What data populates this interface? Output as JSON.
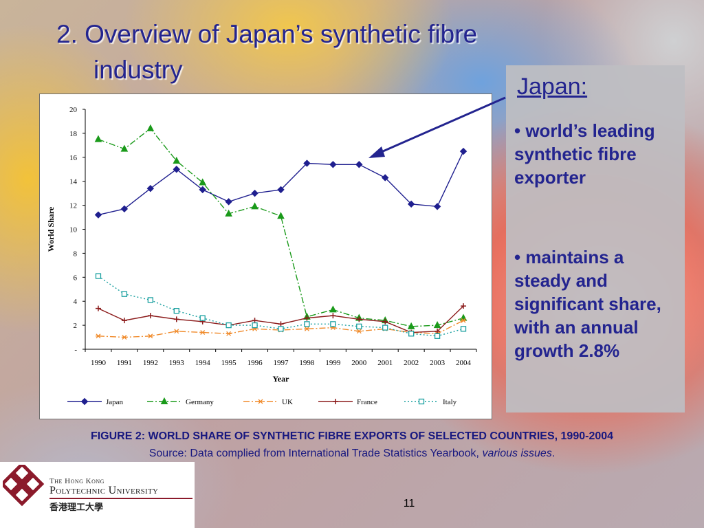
{
  "slide": {
    "title_line1": "2. Overview of Japan’s synthetic fibre",
    "title_line2": "industry",
    "caption": "FIGURE 2: WORLD SHARE OF SYNTHETIC FIBRE EXPORTS OF SELECTED COUNTRIES, 1990-2004",
    "source_prefix": "Source: Data complied from International Trade Statistics Yearbook, ",
    "source_italic": "various issues",
    "source_suffix": ".",
    "page_number": "11"
  },
  "info_box": {
    "heading": "Japan:",
    "bullet1": "• world’s leading synthetic fibre exporter",
    "bullet2": "• maintains a steady and significant share, with an annual growth 2.8%"
  },
  "logo": {
    "line1": "The Hong Kong",
    "line2": "Polytechnic University",
    "chinese": "香港理工大學",
    "color": "#8b1a2b"
  },
  "chart_data": {
    "type": "line",
    "xlabel": "Year",
    "ylabel": "World Share",
    "x": [
      "1990",
      "1991",
      "1992",
      "1993",
      "1994",
      "1995",
      "1996",
      "1997",
      "1998",
      "1999",
      "2000",
      "2001",
      "2002",
      "2003",
      "2004"
    ],
    "yticks": [
      "-",
      "2",
      "4",
      "6",
      "8",
      "10",
      "12",
      "14",
      "16",
      "18",
      "20"
    ],
    "ylim": [
      0,
      20
    ],
    "legend_position": "bottom",
    "series": [
      {
        "name": "Japan",
        "color": "#1f1f8f",
        "marker": "diamond",
        "dash": "solid",
        "values": [
          11.2,
          11.7,
          13.4,
          15.0,
          13.3,
          12.3,
          13.0,
          13.3,
          15.5,
          15.4,
          15.4,
          14.3,
          12.1,
          11.9,
          16.5
        ]
      },
      {
        "name": "Germany",
        "color": "#1a9a1a",
        "marker": "triangle",
        "dash": "dashdot",
        "values": [
          17.5,
          16.7,
          18.4,
          15.7,
          13.9,
          11.3,
          11.9,
          11.1,
          2.7,
          3.3,
          2.6,
          2.4,
          1.9,
          2.0,
          2.6
        ]
      },
      {
        "name": "UK",
        "color": "#f08a2a",
        "marker": "star",
        "dash": "dashdot",
        "values": [
          1.1,
          1.0,
          1.1,
          1.5,
          1.4,
          1.3,
          1.7,
          1.6,
          1.7,
          1.8,
          1.5,
          1.7,
          1.4,
          1.3,
          2.4
        ]
      },
      {
        "name": "France",
        "color": "#8b1a1a",
        "marker": "plus",
        "dash": "solid",
        "values": [
          3.4,
          2.4,
          2.8,
          2.5,
          2.3,
          2.0,
          2.4,
          2.1,
          2.6,
          2.8,
          2.5,
          2.3,
          1.4,
          1.5,
          3.6
        ]
      },
      {
        "name": "Italy",
        "color": "#1aa0a0",
        "marker": "square",
        "dash": "dotted",
        "values": [
          6.1,
          4.6,
          4.1,
          3.2,
          2.6,
          2.0,
          2.0,
          1.7,
          2.1,
          2.1,
          1.9,
          1.8,
          1.3,
          1.1,
          1.7
        ]
      }
    ]
  },
  "annotation": {
    "arrow_color": "#23248f"
  }
}
